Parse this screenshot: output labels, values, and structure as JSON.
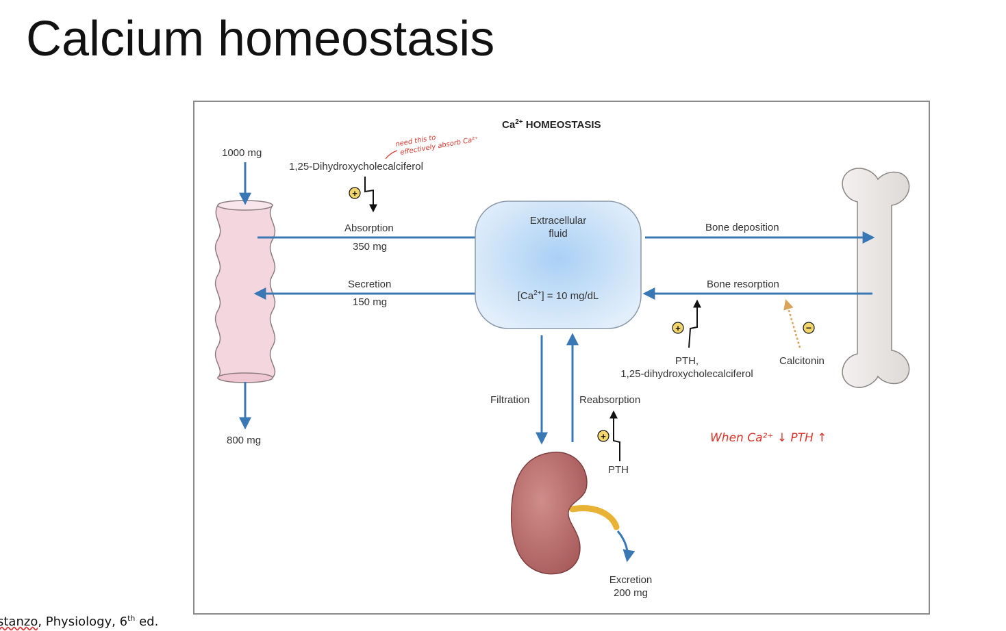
{
  "slide": {
    "title": "Calcium homeostasis",
    "citation_prefix": "stanzo",
    "citation_rest": ", Physiology, 6",
    "citation_sup": "th",
    "citation_end": " ed."
  },
  "figure": {
    "title_main": "Ca",
    "title_sup": "2+",
    "title_rest": " HOMEOSTASIS",
    "intake": "1000 mg",
    "output": "800 mg",
    "vitamin_d": "1,25-Dihydroxycholecalciferol",
    "absorption_label": "Absorption",
    "absorption_amount": "350 mg",
    "secretion_label": "Secretion",
    "secretion_amount": "150 mg",
    "ecf_line1": "Extracellular",
    "ecf_line2": "fluid",
    "ecf_conc_pre": "[Ca",
    "ecf_conc_sup": "2+",
    "ecf_conc_post": "] = 10 mg/dL",
    "bone_deposition": "Bone deposition",
    "bone_resorption": "Bone resorption",
    "pth_vitd_line1": "PTH,",
    "pth_vitd_line2": "1,25-dihydroxycholecalciferol",
    "calcitonin": "Calcitonin",
    "filtration": "Filtration",
    "reabsorption": "Reabsorption",
    "pth": "PTH",
    "excretion_label": "Excretion",
    "excretion_amount": "200 mg",
    "plus_sign": "+",
    "minus_sign": "−"
  },
  "annotations": {
    "note_top_line1": "need this to",
    "note_top_line2": "effectively absorb Ca²⁺",
    "note_right": "When  Ca²⁺ ↓  PTH ↑"
  },
  "colors": {
    "arrow_blue": "#3a78b5",
    "ecf_fill": "#cfe3f7",
    "intestine_fill": "#f4d6de",
    "bone_fill": "#ebe7e6",
    "kidney_fill": "#b86a6a",
    "ureter": "#e8b235",
    "calcitonin_arrow": "#d9a35a",
    "handwriting": "#d9362b"
  }
}
